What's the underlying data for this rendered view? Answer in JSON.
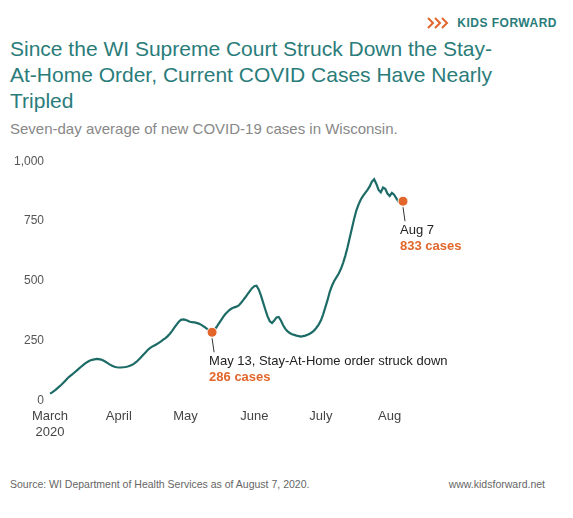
{
  "logo": "KIDS FORWARD",
  "chart_data": {
    "type": "line",
    "title": "Since the WI Supreme Court Struck Down the Stay-At-Home Order, Current COVID Cases Have Nearly Tripled",
    "subtitle": "Seven-day average of new COVID-19 cases in Wisconsin.",
    "categories": [
      "March 2020",
      null,
      null,
      null,
      null,
      null,
      null,
      null,
      null,
      null,
      null,
      null,
      null,
      null,
      null,
      null,
      null,
      null,
      null,
      null,
      null,
      null,
      null,
      null,
      null,
      null,
      null,
      null,
      null,
      null,
      null,
      "April",
      null,
      null,
      null,
      null,
      null,
      null,
      null,
      null,
      null,
      null,
      null,
      null,
      null,
      null,
      null,
      null,
      null,
      null,
      null,
      null,
      null,
      null,
      null,
      null,
      null,
      null,
      null,
      null,
      null,
      "May",
      null,
      null,
      null,
      null,
      null,
      null,
      null,
      null,
      null,
      null,
      null,
      null,
      null,
      null,
      null,
      null,
      null,
      null,
      null,
      null,
      null,
      null,
      null,
      null,
      null,
      null,
      null,
      null,
      null,
      null,
      "June",
      null,
      null,
      null,
      null,
      null,
      null,
      null,
      null,
      null,
      null,
      null,
      null,
      null,
      null,
      null,
      null,
      null,
      null,
      null,
      null,
      null,
      null,
      null,
      null,
      null,
      null,
      null,
      null,
      null,
      "July",
      null,
      null,
      null,
      null,
      null,
      null,
      null,
      null,
      null,
      null,
      null,
      null,
      null,
      null,
      null,
      null,
      null,
      null,
      null,
      null,
      null,
      null,
      null,
      null,
      null,
      null,
      null,
      null,
      null,
      null,
      "Aug",
      null,
      null,
      null,
      null,
      null,
      null
    ],
    "values": [
      30,
      35,
      42,
      50,
      58,
      66,
      75,
      85,
      95,
      103,
      110,
      118,
      126,
      134,
      142,
      150,
      157,
      163,
      168,
      171,
      173,
      175,
      174,
      172,
      168,
      163,
      157,
      151,
      146,
      142,
      140,
      139,
      139,
      140,
      141,
      143,
      146,
      150,
      156,
      163,
      172,
      182,
      192,
      202,
      212,
      220,
      226,
      231,
      236,
      242,
      248,
      255,
      262,
      270,
      280,
      292,
      305,
      318,
      330,
      338,
      340,
      338,
      334,
      330,
      328,
      327,
      325,
      322,
      318,
      312,
      305,
      298,
      291,
      286,
      295,
      308,
      322,
      336,
      350,
      362,
      372,
      380,
      386,
      390,
      393,
      398,
      408,
      420,
      432,
      445,
      458,
      470,
      478,
      480,
      465,
      440,
      410,
      380,
      352,
      332,
      325,
      335,
      348,
      350,
      335,
      315,
      300,
      290,
      283,
      278,
      275,
      272,
      270,
      268,
      270,
      272,
      276,
      280,
      286,
      294,
      305,
      318,
      335,
      360,
      390,
      420,
      455,
      480,
      500,
      515,
      530,
      550,
      575,
      605,
      640,
      680,
      720,
      760,
      795,
      820,
      840,
      855,
      868,
      880,
      895,
      915,
      925,
      905,
      880,
      870,
      890,
      885,
      865,
      855,
      868,
      860,
      845,
      830,
      820,
      833
    ],
    "color": "#1d6b66",
    "annotations": [
      {
        "index": 73,
        "value": 286,
        "text": "May 13, Stay-At-Home order struck down",
        "value_label": "286 cases",
        "color": "#e2662b"
      },
      {
        "index": 159,
        "value": 833,
        "text": "Aug 7",
        "value_label": "833 cases",
        "color": "#e2662b"
      }
    ],
    "ylim": [
      0,
      1000
    ],
    "yticks": [
      0,
      250,
      500,
      750,
      {
        "value": 1000,
        "label": "1,000"
      }
    ],
    "grid": false
  },
  "source": "Source: WI Department of Health Services as of August 7, 2020.",
  "url": "www.kidsforward.net"
}
